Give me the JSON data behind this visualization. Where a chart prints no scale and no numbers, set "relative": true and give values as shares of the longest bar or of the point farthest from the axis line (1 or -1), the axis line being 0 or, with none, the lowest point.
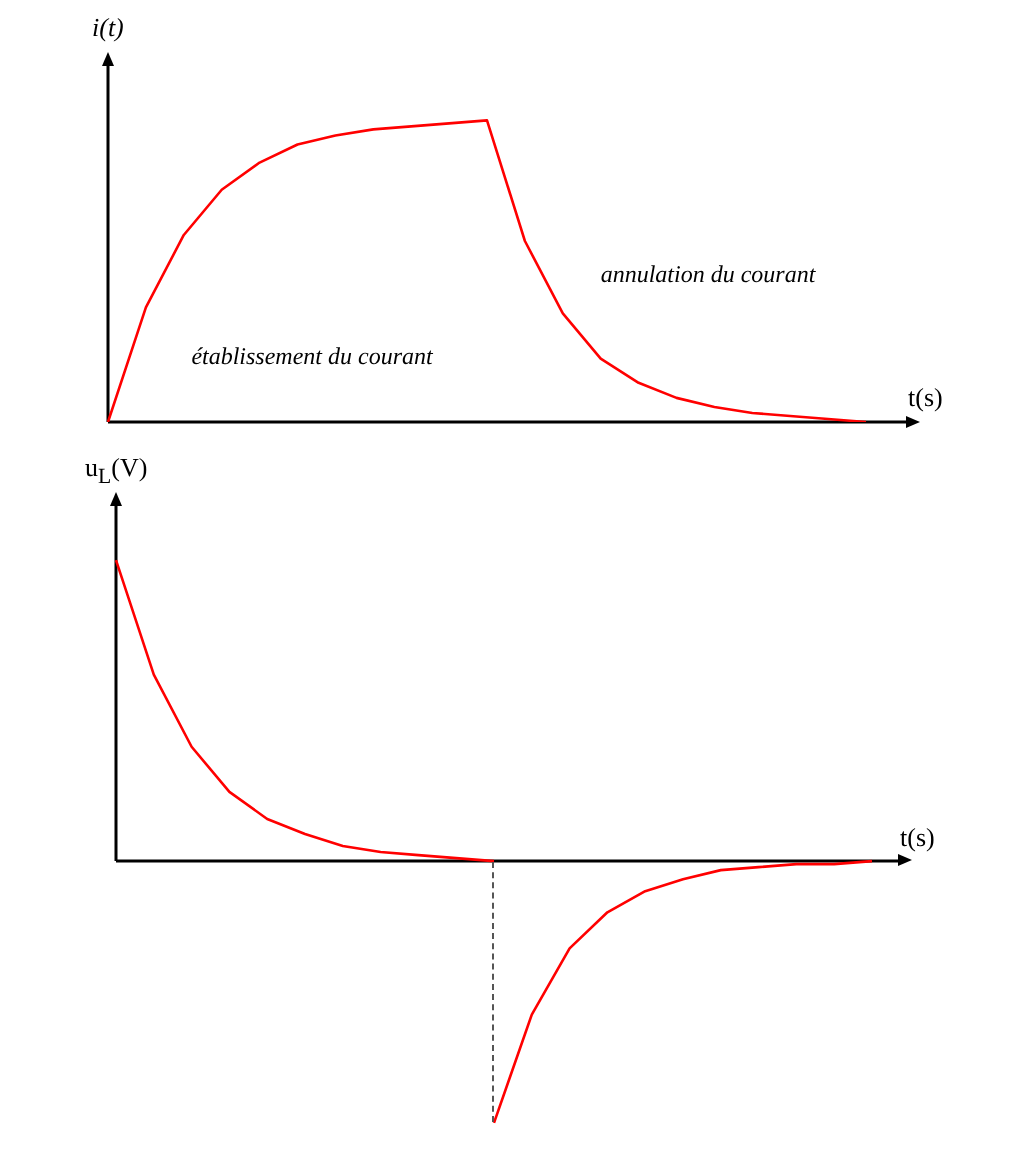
{
  "chart_data": [
    {
      "type": "line",
      "relative": true,
      "xlabel": "t(s)",
      "ylabel": "i(t)",
      "marker": "none",
      "annotations": [
        "établissement du courant",
        "annulation du courant"
      ],
      "categories": [
        null,
        null,
        null,
        null,
        null,
        null,
        null,
        null,
        null,
        null,
        null,
        null,
        null,
        null,
        null,
        null,
        null,
        null,
        null,
        null,
        null
      ],
      "series": [
        {
          "color": "#ff0000",
          "values": [
            0,
            0.38,
            0.62,
            0.77,
            0.86,
            0.92,
            0.95,
            0.97,
            0.98,
            0.99,
            1.0,
            0.6,
            0.36,
            0.21,
            0.13,
            0.08,
            0.05,
            0.03,
            0.02,
            0.01,
            0
          ]
        }
      ]
    },
    {
      "type": "line",
      "relative": true,
      "xlabel": "t(s)",
      "ylabel": "u$_{L}$(V)",
      "marker": "none",
      "categories": [
        null,
        null,
        null,
        null,
        null,
        null,
        null,
        null,
        null,
        null,
        null,
        null,
        null,
        null,
        null,
        null,
        null,
        null,
        null,
        null,
        null
      ],
      "series": [
        {
          "color": "#ff0000",
          "values": [
            1,
            0.62,
            0.38,
            0.23,
            0.14,
            0.09,
            0.05,
            0.03,
            0.02,
            0.01,
            0,
            null,
            null,
            null,
            null,
            null,
            null,
            null,
            null,
            null,
            null
          ]
        },
        {
          "color": "#ff0000",
          "values": [
            null,
            null,
            null,
            null,
            null,
            null,
            null,
            null,
            null,
            null,
            -0.87,
            -0.51,
            -0.29,
            -0.17,
            -0.1,
            -0.06,
            -0.03,
            -0.02,
            -0.01,
            -0.01,
            0
          ]
        }
      ]
    }
  ]
}
